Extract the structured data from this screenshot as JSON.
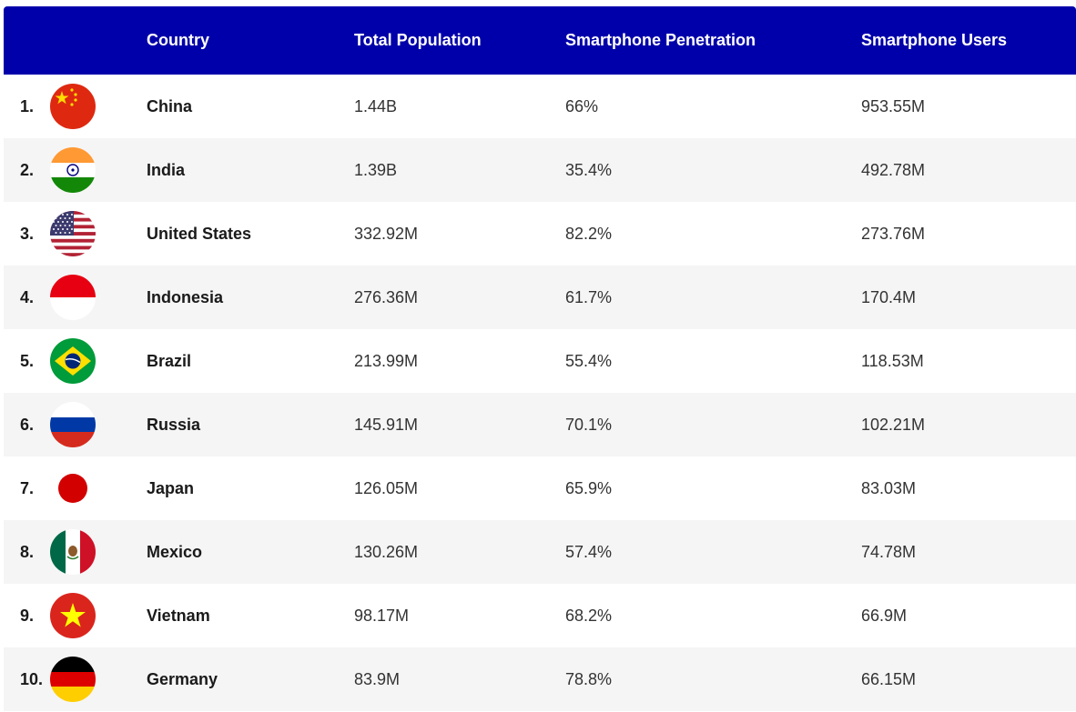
{
  "header": {
    "country": "Country",
    "total_population": "Total Population",
    "smartphone_penetration": "Smartphone Penetration",
    "smartphone_users": "Smartphone Users"
  },
  "colors": {
    "header_bg": "#0000aa",
    "row_alt_bg": "#f5f5f5"
  },
  "rows": [
    {
      "rank": "1.",
      "country": "China",
      "population": "1.44B",
      "penetration": "66%",
      "users": "953.55M",
      "flag_icon": "china-flag-icon"
    },
    {
      "rank": "2.",
      "country": "India",
      "population": "1.39B",
      "penetration": "35.4%",
      "users": "492.78M",
      "flag_icon": "india-flag-icon"
    },
    {
      "rank": "3.",
      "country": "United States",
      "population": "332.92M",
      "penetration": "82.2%",
      "users": "273.76M",
      "flag_icon": "usa-flag-icon"
    },
    {
      "rank": "4.",
      "country": "Indonesia",
      "population": "276.36M",
      "penetration": "61.7%",
      "users": "170.4M",
      "flag_icon": "indonesia-flag-icon"
    },
    {
      "rank": "5.",
      "country": "Brazil",
      "population": "213.99M",
      "penetration": "55.4%",
      "users": "118.53M",
      "flag_icon": "brazil-flag-icon"
    },
    {
      "rank": "6.",
      "country": "Russia",
      "population": "145.91M",
      "penetration": "70.1%",
      "users": "102.21M",
      "flag_icon": "russia-flag-icon"
    },
    {
      "rank": "7.",
      "country": "Japan",
      "population": "126.05M",
      "penetration": "65.9%",
      "users": "83.03M",
      "flag_icon": "japan-flag-icon"
    },
    {
      "rank": "8.",
      "country": "Mexico",
      "population": "130.26M",
      "penetration": "57.4%",
      "users": "74.78M",
      "flag_icon": "mexico-flag-icon"
    },
    {
      "rank": "9.",
      "country": "Vietnam",
      "population": "98.17M",
      "penetration": "68.2%",
      "users": "66.9M",
      "flag_icon": "vietnam-flag-icon"
    },
    {
      "rank": "10.",
      "country": "Germany",
      "population": "83.9M",
      "penetration": "78.8%",
      "users": "66.15M",
      "flag_icon": "germany-flag-icon"
    }
  ]
}
